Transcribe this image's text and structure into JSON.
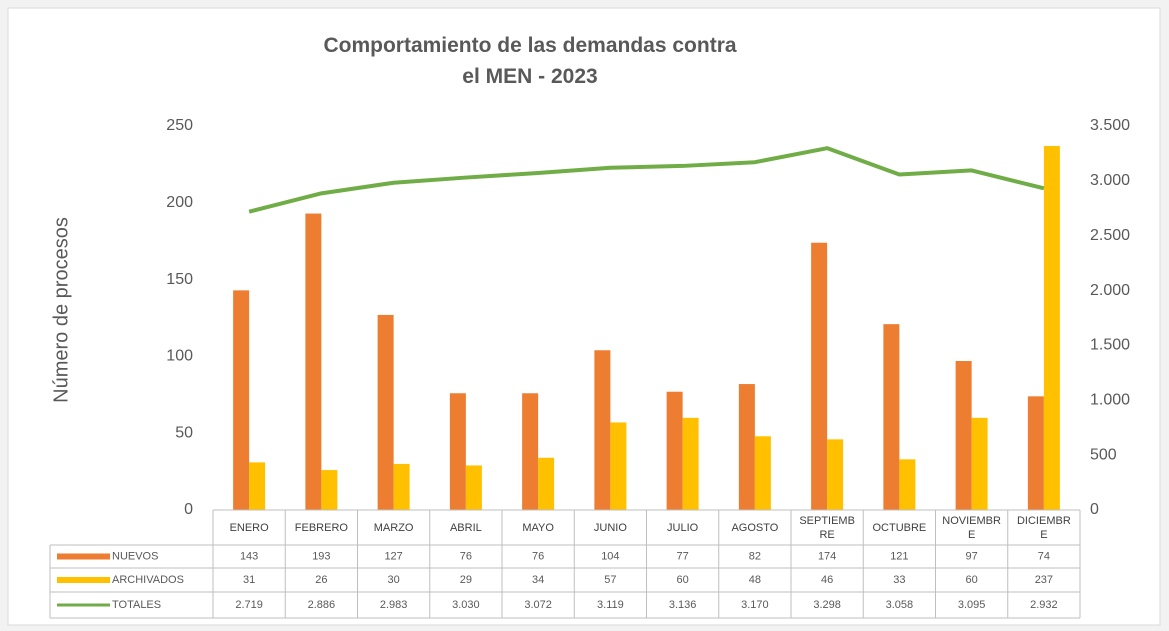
{
  "chart_data": {
    "type": "bar",
    "title": "Comportamiento de las demandas contra el MEN - 2023",
    "y_label": "Número de procesos",
    "categories": [
      "ENERO",
      "FEBRERO",
      "MARZO",
      "ABRIL",
      "MAYO",
      "JUNIO",
      "JULIO",
      "AGOSTO",
      "SEPTIEMBRE",
      "OCTUBRE",
      "NOVIEMBRE",
      "DICIEMBRE"
    ],
    "series": [
      {
        "name": "NUEVOS",
        "type": "bar",
        "color": "#ED7D31",
        "values": [
          143,
          193,
          127,
          76,
          76,
          104,
          77,
          82,
          174,
          121,
          97,
          74
        ]
      },
      {
        "name": "ARCHIVADOS",
        "type": "bar",
        "color": "#FFC000",
        "values": [
          31,
          26,
          30,
          29,
          34,
          57,
          60,
          48,
          46,
          33,
          60,
          237
        ]
      },
      {
        "name": "TOTALES",
        "type": "line",
        "axis": "y2",
        "color": "#70AD47",
        "values": [
          2719,
          2886,
          2983,
          3030,
          3072,
          3119,
          3136,
          3170,
          3298,
          3058,
          3095,
          2932
        ],
        "value_labels": [
          "2.719",
          "2.886",
          "2.983",
          "3.030",
          "3.072",
          "3.119",
          "3.136",
          "3.170",
          "3.298",
          "3.058",
          "3.095",
          "2.932"
        ]
      }
    ],
    "ylim": [
      0,
      250
    ],
    "yticks": [
      0,
      50,
      100,
      150,
      200,
      250
    ],
    "y2lim": [
      0,
      3500
    ],
    "y2ticks": [
      0,
      500,
      {
        "value": 1000,
        "label": "1.000"
      },
      {
        "value": 1500,
        "label": "1.500"
      },
      {
        "value": 2000,
        "label": "2.000"
      },
      {
        "value": 2500,
        "label": "2.500"
      },
      {
        "value": 3000,
        "label": "3.000"
      },
      {
        "value": 3500,
        "label": "3.500"
      }
    ],
    "data_table": true
  }
}
